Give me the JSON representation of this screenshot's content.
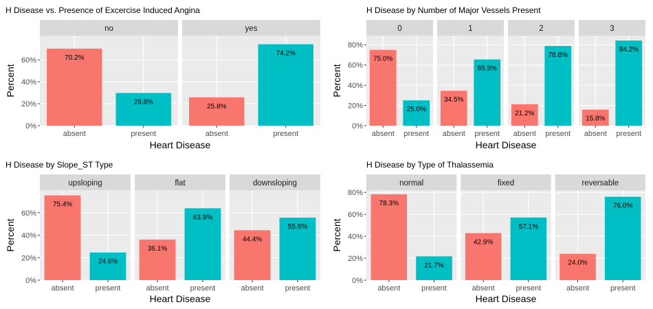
{
  "chart_data": [
    {
      "type": "bar",
      "title": "H Disease vs. Presence of Excercise Induced Angina",
      "xlabel": "Heart Disease",
      "ylabel": "Percent",
      "categories": [
        "absent",
        "present"
      ],
      "yticks": [
        0,
        20,
        40,
        60
      ],
      "ytick_labels": [
        "0%",
        "20%",
        "40%",
        "60%"
      ],
      "ylim": [
        0,
        82
      ],
      "colors": [
        "#F8766D",
        "#00BFC4"
      ],
      "panels": [
        {
          "name": "no",
          "values": [
            70.2,
            29.8
          ],
          "labels": [
            "70.2%",
            "29.8%"
          ]
        },
        {
          "name": "yes",
          "values": [
            25.8,
            74.2
          ],
          "labels": [
            "25.8%",
            "74.2%"
          ]
        }
      ]
    },
    {
      "type": "bar",
      "title": "H Disease by Number of Major Vessels Present",
      "xlabel": "Heart Disease",
      "ylabel": "Percent",
      "categories": [
        "absent",
        "present"
      ],
      "yticks": [
        0,
        20,
        40,
        60,
        80
      ],
      "ytick_labels": [
        "0%",
        "20%",
        "40%",
        "60%",
        "80%"
      ],
      "ylim": [
        0,
        89
      ],
      "colors": [
        "#F8766D",
        "#00BFC4"
      ],
      "panels": [
        {
          "name": "0",
          "values": [
            75.0,
            25.0
          ],
          "labels": [
            "75.0%",
            "25.0%"
          ]
        },
        {
          "name": "1",
          "values": [
            34.5,
            65.5
          ],
          "labels": [
            "34.5%",
            "65.5%"
          ]
        },
        {
          "name": "2",
          "values": [
            21.2,
            78.8
          ],
          "labels": [
            "21.2%",
            "78.8%"
          ]
        },
        {
          "name": "3",
          "values": [
            15.8,
            84.2
          ],
          "labels": [
            "15.8%",
            "84.2%"
          ]
        }
      ]
    },
    {
      "type": "bar",
      "title": "H Disease by Slope_ST Type",
      "xlabel": "Heart Disease",
      "ylabel": "Percent",
      "categories": [
        "absent",
        "present"
      ],
      "yticks": [
        0,
        20,
        40,
        60
      ],
      "ytick_labels": [
        "0%",
        "20%",
        "40%",
        "60%"
      ],
      "ylim": [
        0,
        80
      ],
      "colors": [
        "#F8766D",
        "#00BFC4"
      ],
      "panels": [
        {
          "name": "upsloping",
          "values": [
            75.4,
            24.6
          ],
          "labels": [
            "75.4%",
            "24.6%"
          ]
        },
        {
          "name": "flat",
          "values": [
            36.1,
            63.9
          ],
          "labels": [
            "36.1%",
            "63.9%"
          ]
        },
        {
          "name": "downsloping",
          "values": [
            44.4,
            55.6
          ],
          "labels": [
            "44.4%",
            "55.6%"
          ]
        }
      ]
    },
    {
      "type": "bar",
      "title": "H Disease by Type of Thalassemia",
      "xlabel": "Heart Disease",
      "ylabel": "Percent",
      "categories": [
        "absent",
        "present"
      ],
      "yticks": [
        0,
        20,
        40,
        60,
        80
      ],
      "ytick_labels": [
        "0%",
        "20%",
        "40%",
        "60%",
        "80%"
      ],
      "ylim": [
        0,
        82
      ],
      "colors": [
        "#F8766D",
        "#00BFC4"
      ],
      "panels": [
        {
          "name": "normal",
          "values": [
            78.3,
            21.7
          ],
          "labels": [
            "78.3%",
            "21.7%"
          ]
        },
        {
          "name": "fixed",
          "values": [
            42.9,
            57.1
          ],
          "labels": [
            "42.9%",
            "57.1%"
          ]
        },
        {
          "name": "reversable",
          "values": [
            24.0,
            76.0
          ],
          "labels": [
            "24.0%",
            "76.0%"
          ]
        }
      ]
    }
  ]
}
